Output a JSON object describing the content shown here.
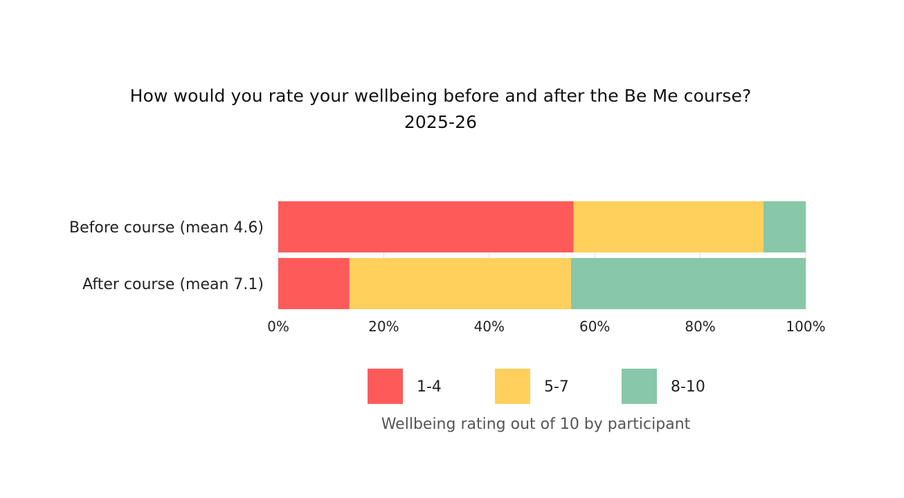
{
  "chart_data": {
    "type": "bar",
    "orientation": "horizontal",
    "stacked": true,
    "title": "How would you rate your wellbeing before and after the Be Me course?",
    "subtitle": "2025-26",
    "categories": [
      "Before course (mean 4.6)",
      "After course (mean 7.1)"
    ],
    "series": [
      {
        "name": "1-4",
        "color": "#FF5A5A",
        "values": [
          56,
          13.5
        ]
      },
      {
        "name": "5-7",
        "color": "#FFD05C",
        "values": [
          36,
          42
        ]
      },
      {
        "name": "8-10",
        "color": "#88C7A8",
        "values": [
          8,
          44.5
        ]
      }
    ],
    "x_ticks": [
      "0%",
      "20%",
      "40%",
      "60%",
      "80%",
      "100%"
    ],
    "xlim": [
      0,
      100
    ],
    "legend_title": "Wellbeing rating out of 10 by participant",
    "legend_position": "bottom",
    "grid": true
  }
}
